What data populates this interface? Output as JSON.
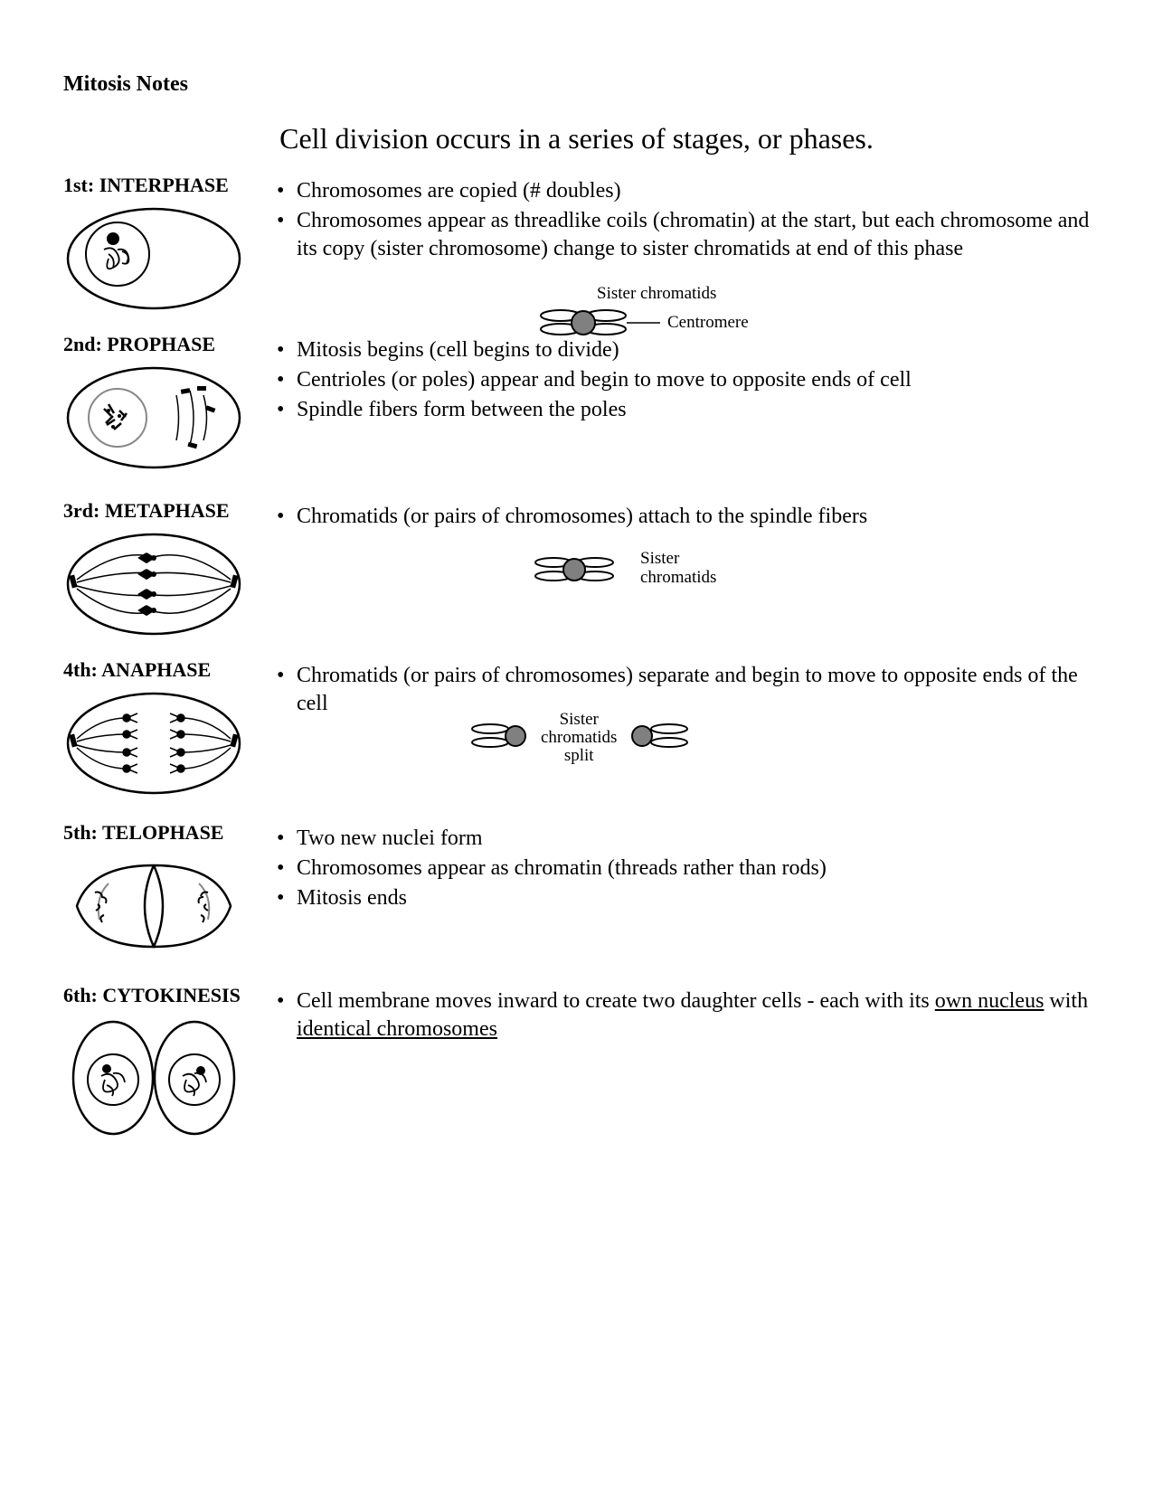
{
  "document": {
    "title": "Mitosis Notes",
    "subtitle": "Cell division occurs in a series of stages, or phases.",
    "font_family": "Georgia, serif",
    "title_fontsize": 24,
    "subtitle_fontsize": 32,
    "body_fontsize": 24,
    "annotation_fontsize": 19,
    "background_color": "#ffffff",
    "text_color": "#000000",
    "diagram_stroke": "#000000",
    "diagram_fill_gray": "#808080",
    "diagram_fill_light": "#cccccc"
  },
  "phases": [
    {
      "heading": "1st:  INTERPHASE",
      "bullets": [
        "Chromosomes are copied  (# doubles)",
        "Chromosomes appear as threadlike coils (chromatin) at the start, but each chromosome and its copy (sister chromosome)  change to sister chromatids at end of this phase"
      ],
      "annotations": {
        "sister_chromatids": "Sister chromatids",
        "centromere": "Centromere"
      }
    },
    {
      "heading": "2nd:  PROPHASE",
      "bullets": [
        "Mitosis begins (cell begins to divide)",
        "Centrioles (or poles) appear and begin to move to opposite ends of cell",
        "Spindle fibers form between the poles"
      ]
    },
    {
      "heading": "3rd:  METAPHASE",
      "bullets": [
        "Chromatids (or pairs of chromosomes) attach to the spindle fibers"
      ],
      "annotations": {
        "sister_chromatids": "Sister\nchromatids"
      }
    },
    {
      "heading": "4th:  ANAPHASE",
      "bullets": [
        "Chromatids (or pairs of chromosomes) separate and begin to move to opposite ends of the cell"
      ],
      "annotations": {
        "split": "Sister\nchromatids\nsplit"
      }
    },
    {
      "heading": "5th:  TELOPHASE",
      "bullets": [
        "Two new nuclei form",
        "Chromosomes appear as chromatin (threads rather than rods)",
        "Mitosis ends"
      ]
    },
    {
      "heading": "6th:  CYTOKINESIS",
      "bullets_html": "Cell membrane moves inward to create two daughter cells - each with its <span class=\"under\">own nucleus</span> with <span class=\"under\">identical chromosomes</span>"
    }
  ]
}
